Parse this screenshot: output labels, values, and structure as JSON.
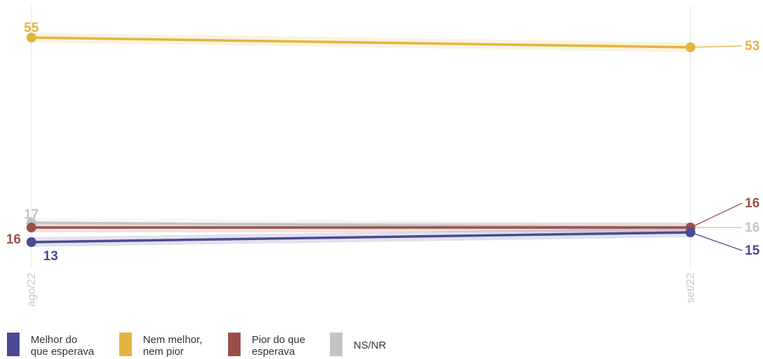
{
  "chart_data": {
    "type": "line",
    "x": [
      "ago/22",
      "set/22"
    ],
    "ylim": [
      0,
      60
    ],
    "grid": false,
    "legend_position": "bottom",
    "series": [
      {
        "name": "Melhor do\nque esperava",
        "color": "#4b4a93",
        "values": [
          13,
          15
        ],
        "labels": [
          "13",
          "15"
        ]
      },
      {
        "name": "Nem melhor,\nnem pior",
        "color": "#e3b53e",
        "values": [
          55,
          53
        ],
        "labels": [
          "55",
          "53"
        ]
      },
      {
        "name": "Pior do que\nesperava",
        "color": "#9b4f4b",
        "values": [
          16,
          16
        ],
        "labels": [
          "16",
          "16"
        ]
      },
      {
        "name": "NS/NR",
        "color": "#c4c4c4",
        "values": [
          17,
          16
        ],
        "labels": [
          "17",
          "16"
        ]
      }
    ]
  }
}
